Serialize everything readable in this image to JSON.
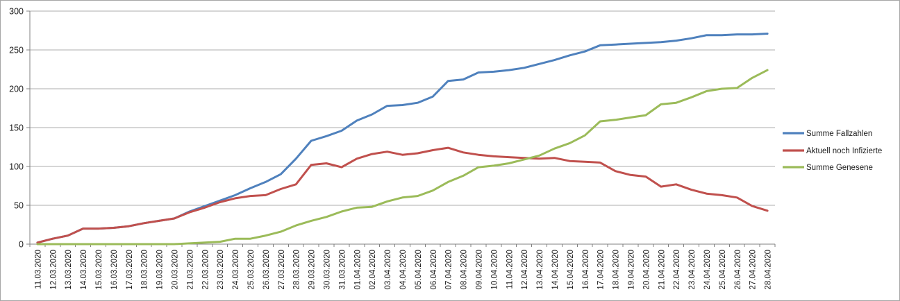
{
  "chart_data": {
    "type": "line",
    "title": "",
    "xlabel": "",
    "ylabel": "",
    "grid": "horizontal",
    "legend_position": "right",
    "ylim": [
      0,
      300
    ],
    "y_ticks": [
      0,
      50,
      100,
      150,
      200,
      250,
      300
    ],
    "categories": [
      "11.03.2020",
      "12.03.2020",
      "13.03.2020",
      "14.03.2020",
      "15.03.2020",
      "16.03.2020",
      "17.03.2020",
      "18.03.2020",
      "19.03.2020",
      "20.03.2020",
      "21.03.2020",
      "22.03.2020",
      "23.03.2020",
      "24.03.2020",
      "25.03.2020",
      "26.03.2020",
      "27.03.2020",
      "28.03.2020",
      "29.03.2020",
      "30.03.2020",
      "31.03.2020",
      "01.04.2020",
      "02.04.2020",
      "03.04.2020",
      "04.04.2020",
      "05.04.2020",
      "06.04.2020",
      "07.04.2020",
      "08.04.2020",
      "09.04.2020",
      "10.04.2020",
      "11.04.2020",
      "12.04.2020",
      "13.04.2020",
      "14.04.2020",
      "15.04.2020",
      "16.04.2020",
      "17.04.2020",
      "18.04.2020",
      "19.04.2020",
      "20.04.2020",
      "21.04.2020",
      "22.04.2020",
      "23.04.2020",
      "24.04.2020",
      "25.04.2020",
      "26.04.2020",
      "27.04.2020",
      "28.04.2020"
    ],
    "series": [
      {
        "name": "Summe Fallzahlen",
        "color": "#4F81BD",
        "values": [
          2,
          7,
          11,
          20,
          20,
          21,
          23,
          27,
          30,
          33,
          42,
          49,
          56,
          63,
          72,
          80,
          90,
          110,
          133,
          139,
          146,
          159,
          167,
          178,
          179,
          182,
          190,
          210,
          212,
          221,
          222,
          224,
          227,
          232,
          237,
          243,
          248,
          256,
          257,
          258,
          259,
          260,
          262,
          265,
          269,
          269,
          270,
          270,
          271
        ]
      },
      {
        "name": "Aktuell noch Infizierte",
        "color": "#C0504D",
        "values": [
          2,
          7,
          11,
          20,
          20,
          21,
          23,
          27,
          30,
          33,
          41,
          47,
          54,
          59,
          62,
          63,
          71,
          77,
          102,
          104,
          99,
          110,
          116,
          119,
          115,
          117,
          121,
          124,
          118,
          115,
          113,
          112,
          111,
          110,
          111,
          107,
          106,
          105,
          94,
          89,
          87,
          74,
          77,
          70,
          65,
          63,
          60,
          49,
          43
        ]
      },
      {
        "name": "Summe Genesene",
        "color": "#9BBB59",
        "values": [
          0,
          0,
          0,
          0,
          0,
          0,
          0,
          0,
          0,
          0,
          1,
          2,
          3,
          7,
          7,
          11,
          16,
          24,
          30,
          35,
          42,
          47,
          48,
          55,
          60,
          62,
          69,
          80,
          88,
          99,
          101,
          104,
          109,
          114,
          123,
          130,
          140,
          158,
          160,
          163,
          166,
          180,
          182,
          189,
          197,
          200,
          201,
          214,
          224
        ]
      }
    ]
  },
  "colors": {
    "background": "#FFFFFF",
    "frame_border": "#A6A6A6",
    "gridline": "#ACACAC",
    "axis": "#808080",
    "text": "#1A1A1A"
  }
}
